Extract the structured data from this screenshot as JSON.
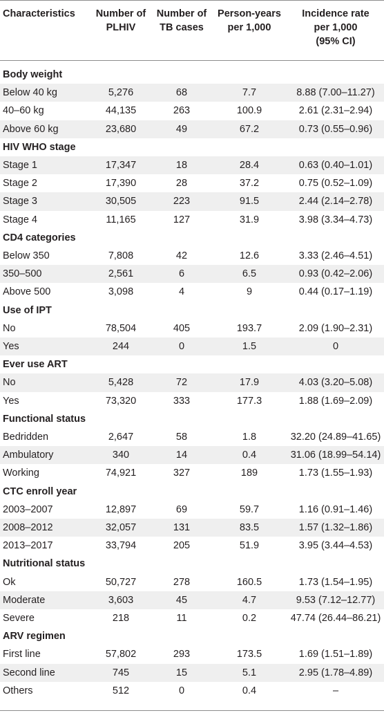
{
  "header": {
    "c0": [
      "Characteristics"
    ],
    "c1": [
      "Number of",
      "PLHIV"
    ],
    "c2": [
      "Number of",
      "TB cases"
    ],
    "c3": [
      "Person-years",
      "per 1,000"
    ],
    "c4": [
      "Incidence rate",
      "per 1,000",
      "(95% CI)"
    ]
  },
  "rows": [
    {
      "type": "section",
      "label": "Body weight"
    },
    {
      "type": "data",
      "cells": [
        "Below 40 kg",
        "5,276",
        "68",
        "7.7",
        "8.88 (7.00–11.27)"
      ]
    },
    {
      "type": "data",
      "cells": [
        "40–60 kg",
        "44,135",
        "263",
        "100.9",
        "2.61 (2.31–2.94)"
      ]
    },
    {
      "type": "data",
      "cells": [
        "Above 60 kg",
        "23,680",
        "49",
        "67.2",
        "0.73 (0.55–0.96)"
      ]
    },
    {
      "type": "section",
      "label": "HIV WHO stage"
    },
    {
      "type": "data",
      "cells": [
        "Stage 1",
        "17,347",
        "18",
        "28.4",
        "0.63 (0.40–1.01)"
      ]
    },
    {
      "type": "data",
      "cells": [
        "Stage 2",
        "17,390",
        "28",
        "37.2",
        "0.75 (0.52–1.09)"
      ]
    },
    {
      "type": "data",
      "cells": [
        "Stage 3",
        "30,505",
        "223",
        "91.5",
        "2.44 (2.14–2.78)"
      ]
    },
    {
      "type": "data",
      "cells": [
        "Stage 4",
        "11,165",
        "127",
        "31.9",
        "3.98 (3.34–4.73)"
      ]
    },
    {
      "type": "section",
      "label": "CD4 categories"
    },
    {
      "type": "data",
      "cells": [
        "Below 350",
        "7,808",
        "42",
        "12.6",
        "3.33 (2.46–4.51)"
      ]
    },
    {
      "type": "data",
      "cells": [
        "350–500",
        "2,561",
        "6",
        "6.5",
        "0.93 (0.42–2.06)"
      ]
    },
    {
      "type": "data",
      "cells": [
        "Above 500",
        "3,098",
        "4",
        "9",
        "0.44 (0.17–1.19)"
      ]
    },
    {
      "type": "section",
      "label": "Use of IPT"
    },
    {
      "type": "data",
      "cells": [
        "No",
        "78,504",
        "405",
        "193.7",
        "2.09 (1.90–2.31)"
      ]
    },
    {
      "type": "data",
      "cells": [
        "Yes",
        "244",
        "0",
        "1.5",
        "0"
      ]
    },
    {
      "type": "section",
      "label": "Ever use ART"
    },
    {
      "type": "data",
      "cells": [
        "No",
        "5,428",
        "72",
        "17.9",
        "4.03 (3.20–5.08)"
      ]
    },
    {
      "type": "data",
      "cells": [
        "Yes",
        "73,320",
        "333",
        "177.3",
        "1.88 (1.69–2.09)"
      ]
    },
    {
      "type": "section",
      "label": "Functional status"
    },
    {
      "type": "data",
      "cells": [
        "Bedridden",
        "2,647",
        "58",
        "1.8",
        "32.20 (24.89–41.65)"
      ]
    },
    {
      "type": "data",
      "cells": [
        "Ambulatory",
        "340",
        "14",
        "0.4",
        "31.06 (18.99–54.14)"
      ]
    },
    {
      "type": "data",
      "cells": [
        "Working",
        "74,921",
        "327",
        "189",
        "1.73 (1.55–1.93)"
      ]
    },
    {
      "type": "section",
      "label": "CTC enroll year"
    },
    {
      "type": "data",
      "cells": [
        "2003–2007",
        "12,897",
        "69",
        "59.7",
        "1.16 (0.91–1.46)"
      ]
    },
    {
      "type": "data",
      "cells": [
        "2008–2012",
        "32,057",
        "131",
        "83.5",
        "1.57 (1.32–1.86)"
      ]
    },
    {
      "type": "data",
      "cells": [
        "2013–2017",
        "33,794",
        "205",
        "51.9",
        "3.95 (3.44–4.53)"
      ]
    },
    {
      "type": "section",
      "label": "Nutritional status"
    },
    {
      "type": "data",
      "cells": [
        "Ok",
        "50,727",
        "278",
        "160.5",
        "1.73 (1.54–1.95)"
      ]
    },
    {
      "type": "data",
      "cells": [
        "Moderate",
        "3,603",
        "45",
        "4.7",
        "9.53 (7.12–12.77)"
      ]
    },
    {
      "type": "data",
      "cells": [
        "Severe",
        "218",
        "11",
        "0.2",
        "47.74 (26.44–86.21)"
      ]
    },
    {
      "type": "section",
      "label": "ARV regimen"
    },
    {
      "type": "data",
      "cells": [
        "First line",
        "57,802",
        "293",
        "173.5",
        "1.69 (1.51–1.89)"
      ]
    },
    {
      "type": "data",
      "cells": [
        "Second line",
        "745",
        "15",
        "5.1",
        "2.95 (1.78–4.89)"
      ]
    },
    {
      "type": "data",
      "cells": [
        "Others",
        "512",
        "0",
        "0.4",
        "–"
      ]
    }
  ]
}
